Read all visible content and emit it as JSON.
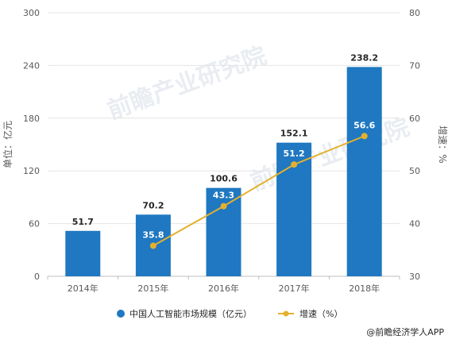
{
  "chart_data": {
    "type": "bar",
    "categories": [
      "2014年",
      "2015年",
      "2016年",
      "2017年",
      "2018年"
    ],
    "series": [
      {
        "name": "中国人工智能市场规模（亿元）",
        "type": "bar",
        "axis": "left",
        "color": "#1f78c1",
        "values": [
          51.7,
          70.2,
          100.6,
          152.1,
          238.2
        ],
        "labels": [
          "51.7",
          "70.2",
          "100.6",
          "152.1",
          "238.2"
        ]
      },
      {
        "name": "增速（%）",
        "type": "line",
        "axis": "right",
        "color": "#e6b02e",
        "values": [
          null,
          35.8,
          43.3,
          51.2,
          56.6
        ],
        "labels": [
          "",
          "35.8",
          "43.3",
          "51.2",
          "56.6"
        ]
      }
    ],
    "ylabel": "单位：亿元",
    "y2label": "增速：%",
    "ylim": [
      0,
      300
    ],
    "y2lim": [
      30,
      80
    ],
    "yticks": [
      "0",
      "60",
      "120",
      "180",
      "240",
      "300"
    ],
    "y2ticks": [
      "30",
      "40",
      "50",
      "60",
      "70",
      "80"
    ],
    "grid": true,
    "legend": "bottom"
  },
  "watermark": "前瞻产业研究院",
  "source": "@前瞻经济学人APP"
}
